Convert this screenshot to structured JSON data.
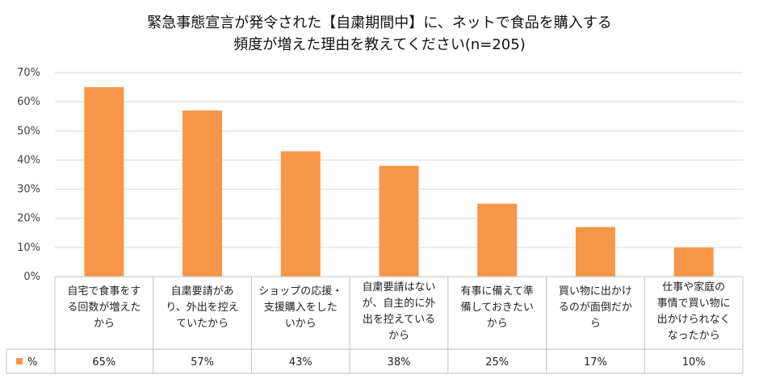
{
  "chart_data": {
    "type": "bar",
    "title": "緊急事態宣言が発令された【自粛期間中】に、ネットで食品を購入する",
    "subtitle": "頻度が増えた理由を教えてください(n=205)",
    "categories": [
      [
        "自宅で食事をす",
        "る回数が増えた",
        "から"
      ],
      [
        "自粛要請があ",
        "り、外出を控え",
        "ていたから"
      ],
      [
        "ショップの応援・",
        "支援購入をした",
        "いから"
      ],
      [
        "自粛要請はない",
        "が、自主的に外",
        "出を控えている",
        "から"
      ],
      [
        "有事に備えて準",
        "備しておきたい",
        "から"
      ],
      [
        "買い物に出かけ",
        "るのが面倒だか",
        "ら"
      ],
      [
        "仕事や家庭の",
        "事情で買い物に",
        "出かけられなく",
        "なったから"
      ]
    ],
    "series": [
      {
        "name": "%",
        "values": [
          65,
          57,
          43,
          38,
          25,
          17,
          10
        ]
      }
    ],
    "value_labels": [
      "65%",
      "57%",
      "43%",
      "38%",
      "25%",
      "17%",
      "10%"
    ],
    "y_ticks": [
      "0%",
      "10%",
      "20%",
      "30%",
      "40%",
      "50%",
      "60%",
      "70%"
    ],
    "ylim": [
      0,
      70
    ],
    "grid": true,
    "legend": "table-left",
    "bar_color": "#F79646"
  }
}
